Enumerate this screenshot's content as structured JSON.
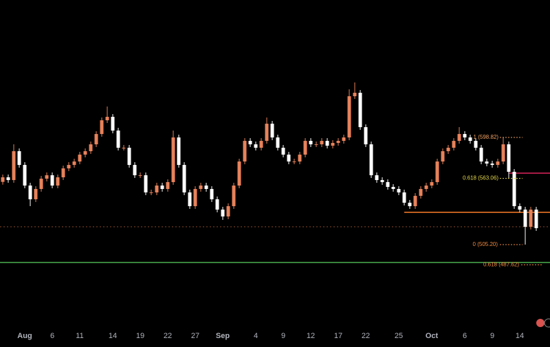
{
  "chart_data": {
    "type": "candlestick",
    "ylim": [
      433.82,
      718.82
    ],
    "up_color": "#e8825a",
    "down_color": "#ffffff",
    "categories": [
      null,
      null,
      null,
      null,
      "Aug",
      null,
      null,
      null,
      null,
      "6",
      null,
      null,
      null,
      null,
      "11",
      null,
      null,
      null,
      null,
      null,
      "14",
      null,
      null,
      null,
      null,
      "19",
      null,
      null,
      null,
      null,
      "22",
      null,
      null,
      null,
      null,
      "27",
      null,
      null,
      null,
      null,
      "Sep",
      null,
      null,
      null,
      null,
      null,
      "4",
      null,
      null,
      null,
      null,
      "9",
      null,
      null,
      null,
      null,
      "12",
      null,
      null,
      null,
      null,
      "17",
      null,
      null,
      null,
      null,
      "22",
      null,
      null,
      null,
      null,
      null,
      "25",
      null,
      null,
      null,
      null,
      null,
      "Oct",
      null,
      null,
      null,
      null,
      null,
      "6",
      null,
      null,
      null,
      null,
      "9",
      null,
      null,
      null,
      null,
      "14",
      null,
      null,
      null
    ],
    "open": [
      560.0,
      564.0,
      561.6,
      586.8,
      574.8,
      556.8,
      544.8,
      553.8,
      562.8,
      565.8,
      556.8,
      564.0,
      571.8,
      574.8,
      577.8,
      583.8,
      586.8,
      592.8,
      601.8,
      613.8,
      616.8,
      604.8,
      589.8,
      589.8,
      574.8,
      565.8,
      565.8,
      550.8,
      550.8,
      556.8,
      553.8,
      559.8,
      598.8,
      574.8,
      550.8,
      538.8,
      553.8,
      556.8,
      553.8,
      544.8,
      535.8,
      529.8,
      538.8,
      556.8,
      577.8,
      595.8,
      592.8,
      589.8,
      595.8,
      610.8,
      598.8,
      589.8,
      583.8,
      577.8,
      577.8,
      583.8,
      595.8,
      592.8,
      592.8,
      595.8,
      591.6,
      594.0,
      595.8,
      598.8,
      634.8,
      637.8,
      607.8,
      592.8,
      565.8,
      561.6,
      559.8,
      555.6,
      553.8,
      550.8,
      541.8,
      538.8,
      547.8,
      553.8,
      556.8,
      559.8,
      577.8,
      586.8,
      589.8,
      595.8,
      601.8,
      598.8,
      595.8,
      589.8,
      577.8,
      576.0,
      574.8,
      577.8,
      592.8,
      568.8,
      538.8,
      535.8,
      520.8,
      535.8
    ],
    "high": [
      566.4,
      566.4,
      592.8,
      589.2,
      577.2,
      559.2,
      556.2,
      565.2,
      568.2,
      568.2,
      566.4,
      574.2,
      577.2,
      580.2,
      586.2,
      589.2,
      595.2,
      604.2,
      616.2,
      625.8,
      619.2,
      607.2,
      592.2,
      592.2,
      577.2,
      568.2,
      568.2,
      553.2,
      559.2,
      559.2,
      562.2,
      604.8,
      601.2,
      577.2,
      553.2,
      556.2,
      559.2,
      559.2,
      556.2,
      547.2,
      538.2,
      541.2,
      559.2,
      580.2,
      598.2,
      598.2,
      595.2,
      598.2,
      616.2,
      613.2,
      601.2,
      592.2,
      586.2,
      580.2,
      586.2,
      598.2,
      598.2,
      595.2,
      598.2,
      598.2,
      596.4,
      598.2,
      601.2,
      640.8,
      646.8,
      640.2,
      610.2,
      595.2,
      568.2,
      564.0,
      562.2,
      558.0,
      556.2,
      553.2,
      544.2,
      550.2,
      556.2,
      559.2,
      562.2,
      580.2,
      589.2,
      592.2,
      598.2,
      607.8,
      604.2,
      601.2,
      598.2,
      592.2,
      580.2,
      578.4,
      580.2,
      598.8,
      595.2,
      571.2,
      541.2,
      538.2,
      538.2,
      538.2
    ],
    "low": [
      557.6,
      559.2,
      559.2,
      572.4,
      554.4,
      538.8,
      542.4,
      551.4,
      560.4,
      554.4,
      554.4,
      561.6,
      569.4,
      572.4,
      575.4,
      581.4,
      584.4,
      590.4,
      599.4,
      611.4,
      602.4,
      587.4,
      587.4,
      572.4,
      563.4,
      563.4,
      548.4,
      548.4,
      548.4,
      551.4,
      551.4,
      557.4,
      572.4,
      548.4,
      536.4,
      536.4,
      551.4,
      551.4,
      542.4,
      533.4,
      526.8,
      527.4,
      536.4,
      554.4,
      575.4,
      590.4,
      587.4,
      587.4,
      593.4,
      596.4,
      587.4,
      581.4,
      575.4,
      575.4,
      575.4,
      581.4,
      590.4,
      590.4,
      590.4,
      589.2,
      589.2,
      591.6,
      593.4,
      596.4,
      632.4,
      605.4,
      590.4,
      563.4,
      559.2,
      557.4,
      553.2,
      551.4,
      548.4,
      539.4,
      536.4,
      536.4,
      545.4,
      551.4,
      554.4,
      557.4,
      575.4,
      584.4,
      587.4,
      593.4,
      596.4,
      593.4,
      587.4,
      575.4,
      573.6,
      572.4,
      572.4,
      575.4,
      563.1,
      536.4,
      533.4,
      505.2,
      518.4,
      517.2
    ],
    "close": [
      564.0,
      561.6,
      586.8,
      574.8,
      556.8,
      544.8,
      553.8,
      562.8,
      565.8,
      556.8,
      564.0,
      571.8,
      574.8,
      577.8,
      583.8,
      586.8,
      592.8,
      601.8,
      613.8,
      616.8,
      604.8,
      589.8,
      589.8,
      574.8,
      565.8,
      565.8,
      550.8,
      550.8,
      556.8,
      553.8,
      559.8,
      598.8,
      574.8,
      550.8,
      538.8,
      553.8,
      556.8,
      553.8,
      544.8,
      535.8,
      529.8,
      538.8,
      556.8,
      577.8,
      595.8,
      592.8,
      589.8,
      595.8,
      610.8,
      598.8,
      589.8,
      583.8,
      577.8,
      577.8,
      583.8,
      595.8,
      592.8,
      592.8,
      595.8,
      591.6,
      594.0,
      595.8,
      598.8,
      634.8,
      637.8,
      607.8,
      592.8,
      565.8,
      561.6,
      559.8,
      555.6,
      553.8,
      550.8,
      541.8,
      538.8,
      547.8,
      553.8,
      556.8,
      559.8,
      577.8,
      586.8,
      589.8,
      595.8,
      601.8,
      598.8,
      595.8,
      589.8,
      577.8,
      576.0,
      574.8,
      577.8,
      592.8,
      568.8,
      538.8,
      535.8,
      520.8,
      535.8,
      519.6
    ],
    "levels": [
      {
        "value": 598.82,
        "label": "1 (598.82)",
        "color": "#f0a060"
      },
      {
        "value": 563.06,
        "label": "0.618 (563.06)",
        "color": "#e6d84a"
      },
      {
        "value": 505.2,
        "label": "0 (505.20)",
        "color": "#f08a40"
      },
      {
        "value": 487.62,
        "label": "0.618 (487.62)",
        "color": "#f08a40"
      }
    ],
    "lines": [
      {
        "value": 489.6,
        "color": "#4caf50"
      },
      {
        "value": 533.4,
        "color": "#ff7f2a"
      },
      {
        "value": 567.6,
        "color": "#e0245e"
      },
      {
        "value": 520.8,
        "color": "#8a4a2a"
      }
    ]
  }
}
